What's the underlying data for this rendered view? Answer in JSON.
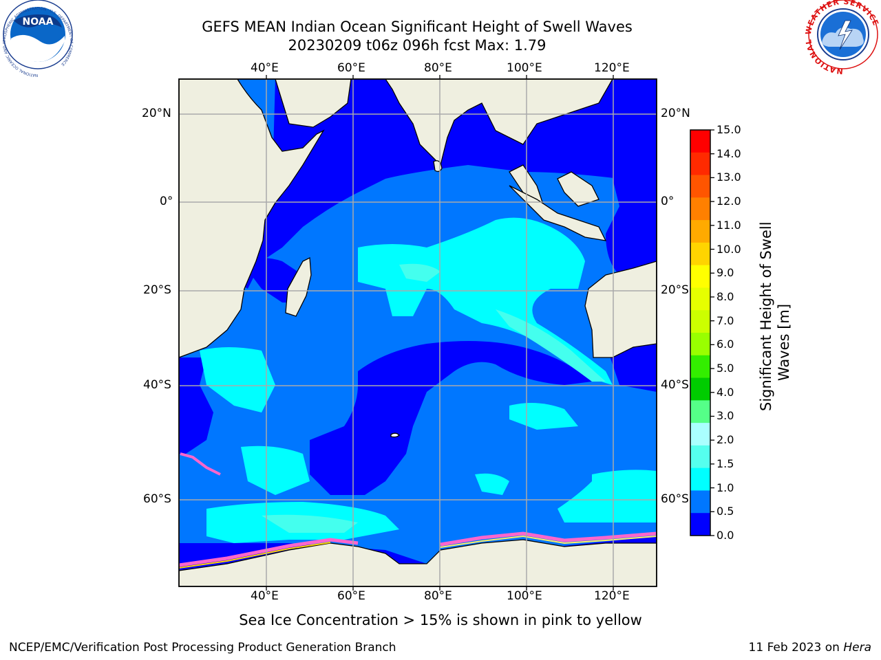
{
  "title": {
    "line1": "GEFS MEAN Indian Ocean Significant Height of Swell Waves",
    "line2": "20230209 t06z 096h fcst   Max: 1.79"
  },
  "map": {
    "region": "Indian Ocean",
    "lon_ticks": [
      "40°E",
      "60°E",
      "80°E",
      "100°E",
      "120°E"
    ],
    "lat_ticks": [
      "20°N",
      "0°",
      "20°S",
      "40°S",
      "60°S"
    ],
    "land_color": "#efefe0",
    "ocean_colors": {
      "level_0_0.5": "#0000ff",
      "level_0.5_1.0": "#0077ff",
      "level_1.0_1.5": "#00ffff",
      "level_1.5_2.0": "#44ffee",
      "ice": "#ff66cc"
    },
    "grid": true
  },
  "colorbar": {
    "label": "Significant Height of Swell Waves [m]",
    "label_line1": "Significant Height of Swell",
    "label_line2": "Waves [m]",
    "ticks": [
      "15.0",
      "14.0",
      "13.0",
      "12.0",
      "11.0",
      "10.0",
      "9.0",
      "8.0",
      "7.0",
      "6.0",
      "5.0",
      "4.0",
      "3.0",
      "2.0",
      "1.5",
      "1.0",
      "0.5",
      "0.0"
    ],
    "colors": [
      "#ff0000",
      "#ff2a00",
      "#ff5500",
      "#ff8000",
      "#ffaa00",
      "#ffd400",
      "#ffff00",
      "#e6ff00",
      "#ccff00",
      "#99ff00",
      "#33ee00",
      "#00cc00",
      "#55ff88",
      "#aaffff",
      "#55ffee",
      "#00ffff",
      "#0077ff",
      "#0000ff"
    ]
  },
  "note": "Sea Ice Concentration > 15% is shown in pink to yellow",
  "footer": {
    "left": "NCEP/EMC/Verification Post Processing Product Generation Branch",
    "right_prefix": "11 Feb 2023 on ",
    "right_italic": "Hera"
  },
  "logos": {
    "left": "noaa-logo",
    "left_ring_text": "NATIONAL OCEANIC AND ATMOSPHERIC ADMINISTRATION · U.S. DEPARTMENT OF COMMERCE",
    "left_center_text": "NOAA",
    "right": "nws-logo",
    "right_ring_text": "NATIONAL WEATHER SERVICE"
  }
}
